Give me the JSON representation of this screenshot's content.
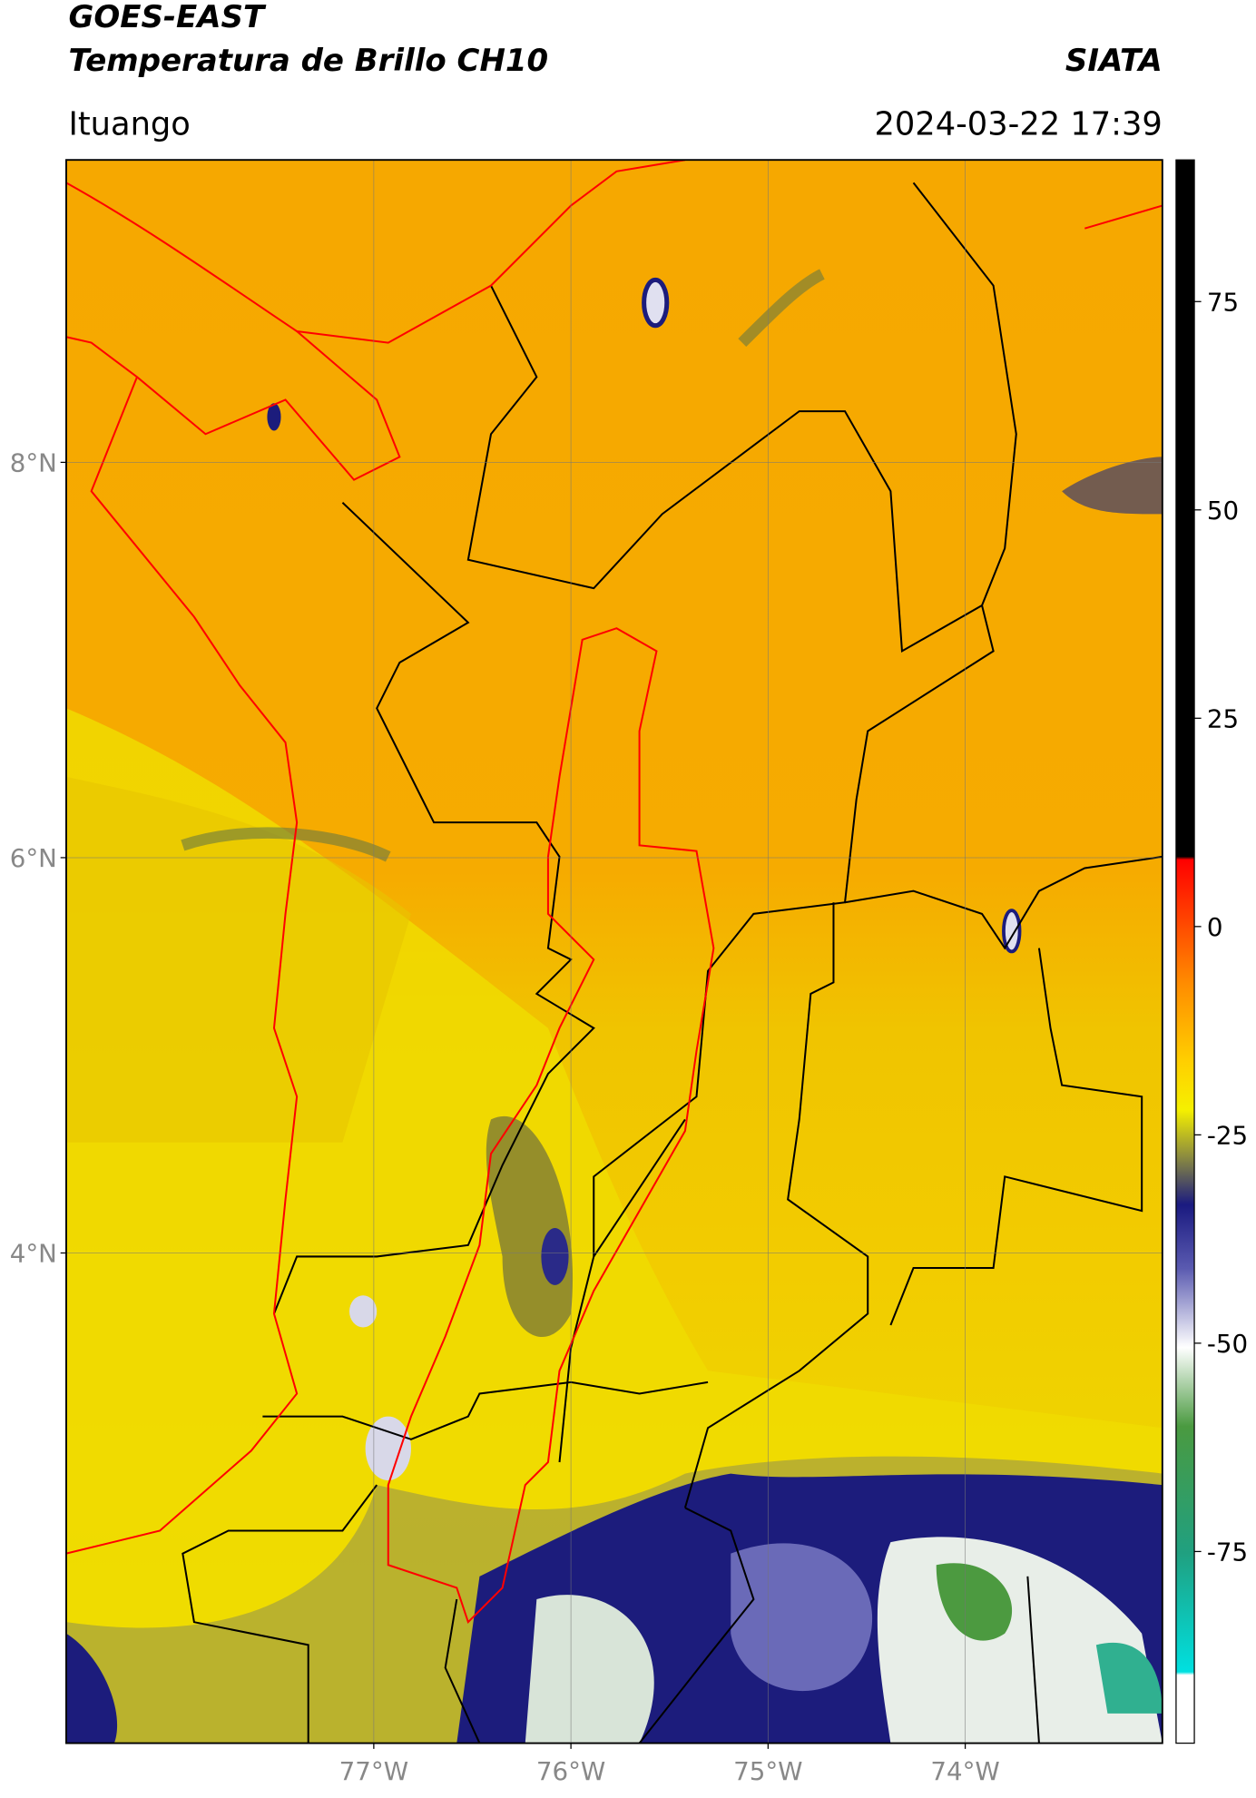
{
  "header": {
    "title": "GOES-EAST",
    "subtitle": "Temperatura de Brillo CH10",
    "brand": "SIATA",
    "location": "Ituango",
    "datetime": "2024-03-22 17:39"
  },
  "map": {
    "latlim": [
      1.52,
      9.53
    ],
    "lonlim": [
      -78.56,
      -73.0
    ],
    "latticks": [
      {
        "value": 8,
        "label": "8°N"
      },
      {
        "value": 6,
        "label": "6°N"
      },
      {
        "value": 4,
        "label": "4°N"
      }
    ],
    "lonticks": [
      {
        "value": -77,
        "label": "77°W"
      },
      {
        "value": -76,
        "label": "76°W"
      },
      {
        "value": -75,
        "label": "75°W"
      },
      {
        "value": -74,
        "label": "74°W"
      }
    ],
    "grid": true
  },
  "colorbar": {
    "lim": [
      -98,
      92
    ],
    "ticks": [
      75,
      50,
      25,
      0,
      -25,
      -50,
      -75
    ]
  }
}
